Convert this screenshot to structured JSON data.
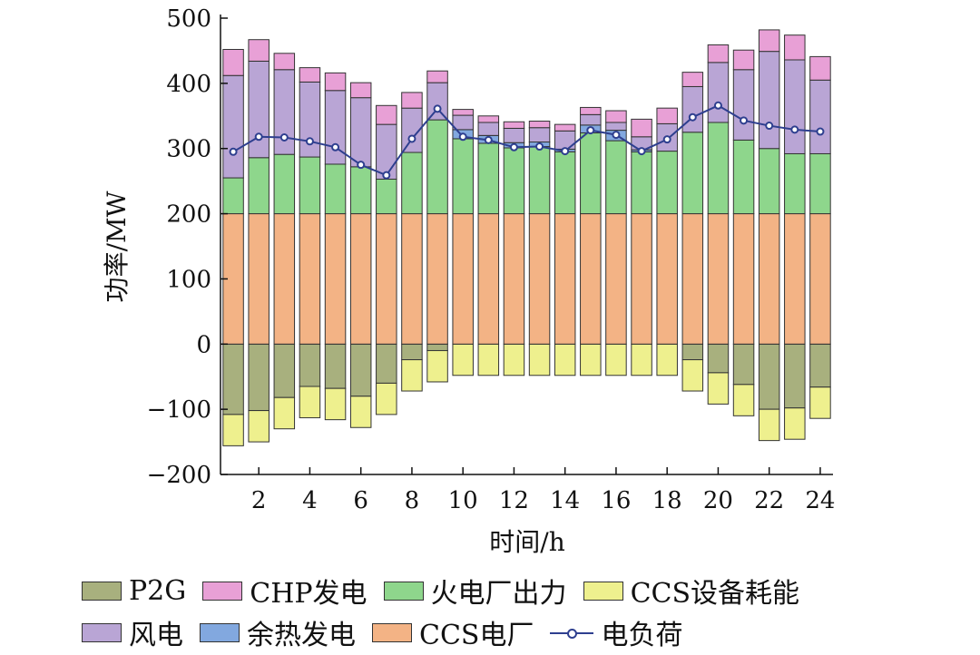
{
  "chart_data": {
    "type": "bar",
    "stacked": true,
    "xlabel": "时间/h",
    "ylabel": "功率/MW",
    "ylim": [
      -200,
      500
    ],
    "yticks": [
      -200,
      -100,
      0,
      100,
      200,
      300,
      400,
      500
    ],
    "ytick_labels": [
      "−200",
      "−100",
      "0",
      "100",
      "200",
      "300",
      "400",
      "500"
    ],
    "xtick_labels": [
      "2",
      "4",
      "6",
      "8",
      "10",
      "12",
      "14",
      "16",
      "18",
      "20",
      "22",
      "24"
    ],
    "categories": [
      1,
      2,
      3,
      4,
      5,
      6,
      7,
      8,
      9,
      10,
      11,
      12,
      13,
      14,
      15,
      16,
      17,
      18,
      19,
      20,
      21,
      22,
      23,
      24
    ],
    "series": [
      {
        "name": "P2G",
        "color": "#a8b07e",
        "values": [
          -108,
          -102,
          -82,
          -65,
          -68,
          -80,
          -60,
          -24,
          -10,
          0,
          0,
          0,
          0,
          0,
          0,
          0,
          0,
          0,
          -24,
          -44,
          -62,
          -100,
          -98,
          -66
        ]
      },
      {
        "name": "CCS设备耗能",
        "color": "#eef08e",
        "values": [
          -48,
          -48,
          -48,
          -48,
          -48,
          -48,
          -48,
          -48,
          -48,
          -48,
          -48,
          -48,
          -48,
          -48,
          -48,
          -48,
          -48,
          -48,
          -48,
          -48,
          -48,
          -48,
          -48,
          -48
        ]
      },
      {
        "name": "CCS电厂",
        "color": "#f3b385",
        "values": [
          200,
          200,
          200,
          200,
          200,
          200,
          200,
          200,
          200,
          200,
          200,
          200,
          200,
          200,
          200,
          200,
          200,
          200,
          200,
          200,
          200,
          200,
          200,
          200
        ]
      },
      {
        "name": "火电厂出力",
        "color": "#8ed68c",
        "values": [
          55,
          86,
          91,
          87,
          76,
          72,
          53,
          94,
          144,
          115,
          108,
          101,
          103,
          95,
          124,
          112,
          95,
          96,
          125,
          140,
          113,
          100,
          92,
          92
        ]
      },
      {
        "name": "余热发电",
        "color": "#82a8df",
        "values": [
          0,
          0,
          0,
          0,
          0,
          0,
          0,
          0,
          0,
          14,
          12,
          8,
          7,
          4,
          12,
          16,
          3,
          0,
          0,
          0,
          0,
          0,
          0,
          0
        ]
      },
      {
        "name": "风电",
        "color": "#b9a5d5",
        "values": [
          157,
          148,
          130,
          115,
          113,
          106,
          84,
          68,
          57,
          22,
          20,
          22,
          22,
          28,
          16,
          12,
          20,
          42,
          70,
          92,
          108,
          149,
          144,
          113
        ]
      },
      {
        "name": "CHP发电",
        "color": "#e8a0d6",
        "values": [
          40,
          33,
          25,
          22,
          27,
          23,
          29,
          24,
          18,
          9,
          10,
          10,
          10,
          10,
          11,
          18,
          27,
          24,
          22,
          27,
          30,
          33,
          38,
          36
        ]
      }
    ],
    "line": {
      "name": "电负荷",
      "color": "#2e3f8f",
      "values": [
        295,
        318,
        317,
        311,
        302,
        275,
        259,
        315,
        361,
        318,
        313,
        302,
        303,
        296,
        328,
        321,
        296,
        314,
        348,
        366,
        343,
        335,
        329,
        326
      ]
    }
  },
  "legend": {
    "row1": [
      "P2G",
      "CHP发电",
      "火电厂出力",
      "CCS设备耗能"
    ],
    "row2": [
      "风电",
      "余热发电",
      "CCS电厂",
      "电负荷"
    ]
  }
}
